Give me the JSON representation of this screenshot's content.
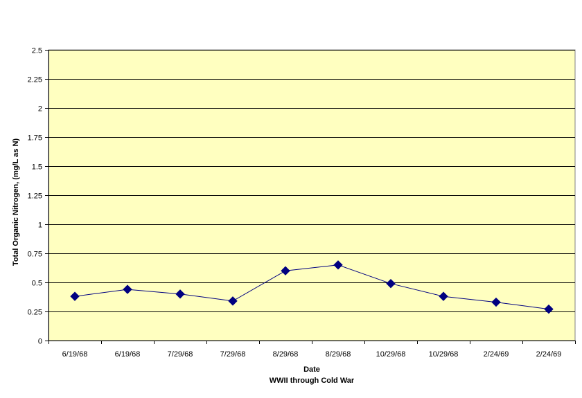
{
  "chart_data": {
    "type": "line",
    "title": "",
    "xlabel": "Date",
    "xlabel_sub": "WWII through Cold War",
    "ylabel": "Total Organic Nitrogen, (mg/L as N)",
    "categories": [
      "6/19/68",
      "6/19/68",
      "7/29/68",
      "7/29/68",
      "8/29/68",
      "8/29/68",
      "10/29/68",
      "10/29/68",
      "2/24/69",
      "2/24/69"
    ],
    "series": [
      {
        "values": [
          0.38,
          0.44,
          0.4,
          0.34,
          0.6,
          0.65,
          0.49,
          0.38,
          0.33,
          0.27
        ]
      }
    ],
    "ylim": [
      0,
      2.5
    ],
    "yticks": [
      0,
      0.25,
      0.5,
      0.75,
      1,
      1.25,
      1.5,
      1.75,
      2,
      2.25,
      2.5
    ],
    "ytick_labels": [
      "0",
      "0.25",
      "0.5",
      "0.75",
      "1",
      "1.25",
      "1.5",
      "1.75",
      "2",
      "2.25",
      "2.5"
    ],
    "grid": true,
    "legend": "none",
    "colors": {
      "plot_background": "#FFFFC0",
      "line": "#000080",
      "marker": "#000080",
      "gridline": "#000000"
    },
    "marker": "diamond"
  }
}
